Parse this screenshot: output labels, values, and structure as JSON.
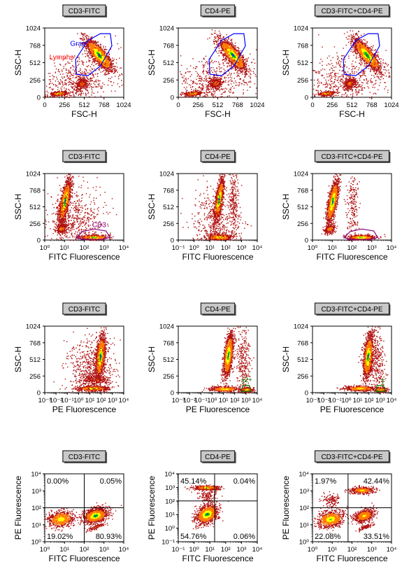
{
  "colors": {
    "density_low": "#b01010",
    "density_mid": "#ff7a00",
    "density_high": "#ffff00",
    "density_core": "#00c000",
    "density_peak": "#0030ff",
    "gate_gran": "#0000ff",
    "gate_lymphs": "#ff0000",
    "gate_cd3": "#800080",
    "gate_t": "#008000",
    "title_box": "#c8c8c8"
  },
  "chart_data": [
    {
      "type": "scatter",
      "title": "CD3-FITC",
      "xlabel": "FSC-H",
      "ylabel": "SSC-H",
      "x_scale": "linear",
      "y_scale": "linear",
      "xlim": [
        0,
        1024
      ],
      "ylim": [
        0,
        1024
      ],
      "x_ticks": [
        "0",
        "256",
        "512",
        "768",
        "1024"
      ],
      "y_ticks": [
        "0",
        "256",
        "512",
        "768",
        "1024"
      ],
      "populations": [
        {
          "x": 700,
          "y": 630,
          "sx": 90,
          "sy": 120,
          "r": -0.8,
          "n": 1500,
          "peak": 1.0
        },
        {
          "x": 180,
          "y": 60,
          "sx": 50,
          "sy": 15,
          "r": 0.3,
          "n": 400,
          "peak": 0.9
        },
        {
          "x": 480,
          "y": 210,
          "sx": 40,
          "sy": 40,
          "r": 0.2,
          "n": 300,
          "peak": 0.6
        },
        {
          "x": 400,
          "y": 200,
          "sx": 280,
          "sy": 220,
          "r": 0.3,
          "n": 700,
          "peak": 0.15
        }
      ],
      "gates": [
        {
          "name": "Gran",
          "color_key": "gate_gran",
          "points": [
            [
              400,
              560
            ],
            [
              560,
              840
            ],
            [
              720,
              940
            ],
            [
              850,
              940
            ],
            [
              870,
              760
            ],
            [
              720,
              460
            ],
            [
              560,
              320
            ],
            [
              410,
              340
            ]
          ]
        }
      ],
      "labels": [
        {
          "text": "Gran",
          "x": 330,
          "y": 760,
          "color_key": "gate_gran"
        },
        {
          "text": "Lymphs",
          "x": 60,
          "y": 560,
          "color_key": "gate_lymphs"
        }
      ]
    },
    {
      "type": "scatter",
      "title": "CD4-PE",
      "xlabel": "FSC-H",
      "ylabel": "SSC-H",
      "x_scale": "linear",
      "y_scale": "linear",
      "xlim": [
        0,
        1024
      ],
      "ylim": [
        0,
        1024
      ],
      "x_ticks": [
        "0",
        "256",
        "512",
        "768",
        "1024"
      ],
      "y_ticks": [
        "0",
        "256",
        "512",
        "768",
        "1024"
      ],
      "populations": [
        {
          "x": 700,
          "y": 630,
          "sx": 90,
          "sy": 120,
          "r": -0.8,
          "n": 1500,
          "peak": 1.0
        },
        {
          "x": 180,
          "y": 60,
          "sx": 50,
          "sy": 15,
          "r": 0.3,
          "n": 400,
          "peak": 0.9
        },
        {
          "x": 480,
          "y": 210,
          "sx": 40,
          "sy": 40,
          "r": 0.2,
          "n": 300,
          "peak": 0.6
        },
        {
          "x": 400,
          "y": 200,
          "sx": 280,
          "sy": 220,
          "r": 0.3,
          "n": 700,
          "peak": 0.15
        }
      ],
      "gates": [
        {
          "name": "Gran",
          "color_key": "gate_gran",
          "points": [
            [
              400,
              560
            ],
            [
              560,
              840
            ],
            [
              720,
              940
            ],
            [
              850,
              940
            ],
            [
              870,
              760
            ],
            [
              720,
              460
            ],
            [
              560,
              320
            ],
            [
              410,
              340
            ]
          ]
        }
      ],
      "labels": []
    },
    {
      "type": "scatter",
      "title": "CD3-FITC+CD4-PE",
      "xlabel": "FSC-H",
      "ylabel": "SSC-H",
      "x_scale": "linear",
      "y_scale": "linear",
      "xlim": [
        0,
        1024
      ],
      "ylim": [
        0,
        1024
      ],
      "x_ticks": [
        "0",
        "256",
        "512",
        "768",
        "1024"
      ],
      "y_ticks": [
        "0",
        "256",
        "512",
        "768",
        "1024"
      ],
      "populations": [
        {
          "x": 700,
          "y": 630,
          "sx": 90,
          "sy": 120,
          "r": -0.8,
          "n": 1500,
          "peak": 1.0
        },
        {
          "x": 180,
          "y": 60,
          "sx": 50,
          "sy": 15,
          "r": 0.3,
          "n": 400,
          "peak": 0.9
        },
        {
          "x": 480,
          "y": 210,
          "sx": 40,
          "sy": 40,
          "r": 0.2,
          "n": 300,
          "peak": 0.6
        },
        {
          "x": 400,
          "y": 200,
          "sx": 280,
          "sy": 220,
          "r": 0.3,
          "n": 700,
          "peak": 0.15
        }
      ],
      "gates": [
        {
          "name": "Gran",
          "color_key": "gate_gran",
          "points": [
            [
              400,
              560
            ],
            [
              560,
              840
            ],
            [
              720,
              940
            ],
            [
              850,
              940
            ],
            [
              870,
              760
            ],
            [
              720,
              460
            ],
            [
              560,
              320
            ],
            [
              410,
              340
            ]
          ]
        }
      ],
      "labels": []
    },
    {
      "type": "scatter",
      "title": "CD3-FITC",
      "xlabel": "FITC Fluorescence",
      "ylabel": "SSC-H",
      "x_scale": "log",
      "y_scale": "linear",
      "xlim": [
        0,
        4
      ],
      "ylim": [
        0,
        1024
      ],
      "y_ticks": [
        "0",
        "256",
        "512",
        "768",
        "1024"
      ],
      "populations": [
        {
          "x": 1.0,
          "y": 600,
          "sx": 0.15,
          "sy": 170,
          "r": 0.7,
          "n": 1400,
          "peak": 1.0
        },
        {
          "x": 2.45,
          "y": 45,
          "sx": 0.35,
          "sy": 20,
          "r": 0.0,
          "n": 500,
          "peak": 0.95
        },
        {
          "x": 0.85,
          "y": 180,
          "sx": 0.15,
          "sy": 40,
          "r": 0.3,
          "n": 250,
          "peak": 0.6
        },
        {
          "x": 1.5,
          "y": 300,
          "sx": 0.7,
          "sy": 250,
          "r": 0.0,
          "n": 600,
          "peak": 0.15
        }
      ],
      "gates": [
        {
          "name": "CD3",
          "color_key": "gate_cd3",
          "points": [
            [
              1.6,
              40
            ],
            [
              1.9,
              130
            ],
            [
              2.5,
              170
            ],
            [
              3.1,
              140
            ],
            [
              3.3,
              40
            ],
            [
              2.9,
              10
            ],
            [
              1.9,
              10
            ]
          ]
        }
      ],
      "labels": [
        {
          "text": "CD3",
          "x": 2.4,
          "y": 200,
          "color_key": "gate_cd3"
        }
      ]
    },
    {
      "type": "scatter",
      "title": "CD4-PE",
      "xlabel": "FITC Fluorescence",
      "ylabel": "SSC-H",
      "x_scale": "log",
      "y_scale": "linear",
      "xlim": [
        -1,
        4
      ],
      "ylim": [
        0,
        1024
      ],
      "y_ticks": [
        "0",
        "256",
        "512",
        "768",
        "1024"
      ],
      "populations": [
        {
          "x": 1.55,
          "y": 620,
          "sx": 0.15,
          "sy": 170,
          "r": 0.7,
          "n": 1400,
          "peak": 1.0
        },
        {
          "x": 1.6,
          "y": 50,
          "sx": 0.4,
          "sy": 25,
          "r": 0.0,
          "n": 500,
          "peak": 0.9
        },
        {
          "x": 2.5,
          "y": 600,
          "sx": 0.15,
          "sy": 250,
          "r": 0.0,
          "n": 200,
          "peak": 0.15
        },
        {
          "x": 1.5,
          "y": 300,
          "sx": 0.8,
          "sy": 250,
          "r": 0.0,
          "n": 500,
          "peak": 0.12
        }
      ],
      "gates": [],
      "labels": []
    },
    {
      "type": "scatter",
      "title": "CD3-FITC+CD4-PE",
      "xlabel": "FITC Fluorescence",
      "ylabel": "SSC-H",
      "x_scale": "log",
      "y_scale": "linear",
      "xlim": [
        0,
        4
      ],
      "ylim": [
        0,
        1024
      ],
      "y_ticks": [
        "0",
        "256",
        "512",
        "768",
        "1024"
      ],
      "populations": [
        {
          "x": 1.0,
          "y": 600,
          "sx": 0.15,
          "sy": 170,
          "r": 0.7,
          "n": 1400,
          "peak": 1.0
        },
        {
          "x": 2.45,
          "y": 45,
          "sx": 0.35,
          "sy": 20,
          "r": 0.0,
          "n": 500,
          "peak": 0.95
        },
        {
          "x": 0.85,
          "y": 180,
          "sx": 0.15,
          "sy": 40,
          "r": 0.3,
          "n": 250,
          "peak": 0.6
        },
        {
          "x": 2.0,
          "y": 550,
          "sx": 0.15,
          "sy": 250,
          "r": 0.0,
          "n": 200,
          "peak": 0.15
        }
      ],
      "gates": [
        {
          "name": "CD3",
          "color_key": "gate_cd3",
          "points": [
            [
              1.6,
              40
            ],
            [
              1.9,
              130
            ],
            [
              2.5,
              170
            ],
            [
              3.1,
              140
            ],
            [
              3.3,
              40
            ],
            [
              2.9,
              10
            ],
            [
              1.9,
              10
            ]
          ]
        }
      ],
      "labels": []
    },
    {
      "type": "scatter",
      "title": "CD3-FITC",
      "xlabel": "PE Fluorescence",
      "ylabel": "SSC-H",
      "x_scale": "log",
      "y_scale": "linear",
      "xlim": [
        -3,
        4
      ],
      "ylim": [
        0,
        1024
      ],
      "y_ticks": [
        "0",
        "256",
        "512",
        "768",
        "1024"
      ],
      "populations": [
        {
          "x": 1.9,
          "y": 560,
          "sx": 0.22,
          "sy": 170,
          "r": 0.4,
          "n": 1400,
          "peak": 1.0
        },
        {
          "x": 1.2,
          "y": 70,
          "sx": 0.7,
          "sy": 20,
          "r": 0.0,
          "n": 500,
          "peak": 0.9
        },
        {
          "x": 1.5,
          "y": 200,
          "sx": 0.6,
          "sy": 40,
          "r": 0.0,
          "n": 250,
          "peak": 0.5
        },
        {
          "x": 1.0,
          "y": 350,
          "sx": 1.0,
          "sy": 250,
          "r": 0.0,
          "n": 600,
          "peak": 0.12
        }
      ],
      "gates": [],
      "labels": []
    },
    {
      "type": "scatter",
      "title": "CD4-PE",
      "xlabel": "PE Fluorescence",
      "ylabel": "SSC-H",
      "x_scale": "log",
      "y_scale": "linear",
      "xlim": [
        -3,
        4
      ],
      "ylim": [
        0,
        1024
      ],
      "y_ticks": [
        "0",
        "256",
        "512",
        "768",
        "1024"
      ],
      "populations": [
        {
          "x": 1.4,
          "y": 580,
          "sx": 0.22,
          "sy": 170,
          "r": 0.5,
          "n": 1300,
          "peak": 1.0
        },
        {
          "x": 1.1,
          "y": 60,
          "sx": 0.7,
          "sy": 20,
          "r": 0.0,
          "n": 450,
          "peak": 0.85
        },
        {
          "x": 3.0,
          "y": 50,
          "sx": 0.3,
          "sy": 20,
          "r": 0.0,
          "n": 250,
          "peak": 0.8
        },
        {
          "x": 2.7,
          "y": 500,
          "sx": 0.3,
          "sy": 280,
          "r": 0.0,
          "n": 300,
          "peak": 0.15
        }
      ],
      "gates": [
        {
          "name": "T",
          "color_key": "gate_t",
          "points": [
            [
              2.6,
              20
            ],
            [
              2.7,
              110
            ],
            [
              3.3,
              110
            ],
            [
              3.4,
              20
            ]
          ]
        }
      ],
      "labels": [
        {
          "text": "T",
          "x": 2.55,
          "y": 130,
          "color_key": "gate_t"
        },
        {
          "text": "2+",
          "x": 2.85,
          "y": 160,
          "color_key": "gate_t"
        }
      ]
    },
    {
      "type": "scatter",
      "title": "CD3-FITC+CD4-PE",
      "xlabel": "PE Fluorescence",
      "ylabel": "SSC-H",
      "x_scale": "log",
      "y_scale": "linear",
      "xlim": [
        -3,
        4
      ],
      "ylim": [
        0,
        1024
      ],
      "y_ticks": [
        "0",
        "256",
        "512",
        "768",
        "1024"
      ],
      "populations": [
        {
          "x": 1.9,
          "y": 560,
          "sx": 0.22,
          "sy": 170,
          "r": 0.4,
          "n": 1400,
          "peak": 1.0
        },
        {
          "x": 1.2,
          "y": 70,
          "sx": 0.7,
          "sy": 20,
          "r": 0.0,
          "n": 450,
          "peak": 0.85
        },
        {
          "x": 3.0,
          "y": 50,
          "sx": 0.3,
          "sy": 20,
          "r": 0.0,
          "n": 250,
          "peak": 0.8
        },
        {
          "x": 2.7,
          "y": 500,
          "sx": 0.3,
          "sy": 280,
          "r": 0.0,
          "n": 300,
          "peak": 0.15
        }
      ],
      "gates": [
        {
          "name": "T",
          "color_key": "gate_t",
          "points": [
            [
              2.6,
              20
            ],
            [
              2.7,
              110
            ],
            [
              3.3,
              110
            ],
            [
              3.4,
              20
            ]
          ]
        }
      ],
      "labels": [
        {
          "text": "T",
          "x": 3.05,
          "y": 130,
          "color_key": "gate_t"
        }
      ]
    },
    {
      "type": "scatter",
      "title": "CD3-FITC",
      "xlabel": "FITC Fluorescence",
      "ylabel": "PE Fluorescence",
      "x_scale": "log",
      "y_scale": "log",
      "xlim": [
        0,
        4
      ],
      "ylim": [
        0,
        4
      ],
      "quadrant": [
        2,
        2
      ],
      "quadrant_values": {
        "ul": "0.00%",
        "ur": "0.05%",
        "ll": "19.02%",
        "lr": "80.93%"
      },
      "populations": [
        {
          "x": 2.55,
          "y": 1.55,
          "sx": 0.3,
          "sy": 0.22,
          "r": 0.3,
          "n": 1200,
          "peak": 1.0
        },
        {
          "x": 0.8,
          "y": 1.35,
          "sx": 0.35,
          "sy": 0.25,
          "r": 0.2,
          "n": 700,
          "peak": 0.85
        },
        {
          "x": 2.6,
          "y": 0.9,
          "sx": 0.2,
          "sy": 0.1,
          "r": 0.8,
          "n": 120,
          "peak": 0.5
        }
      ],
      "gates": [],
      "labels": []
    },
    {
      "type": "scatter",
      "title": "CD4-PE",
      "xlabel": "FITC Fluorescence",
      "ylabel": "PE Fluorescence",
      "x_scale": "log",
      "y_scale": "log",
      "xlim": [
        -1,
        4
      ],
      "ylim": [
        -1,
        4
      ],
      "quadrant": [
        1.3,
        2.0
      ],
      "quadrant_values": {
        "ul": "45.14%",
        "ur": "0.04%",
        "ll": "54.76%",
        "lr": "0.06%"
      },
      "populations": [
        {
          "x": 0.8,
          "y": 1.05,
          "sx": 0.35,
          "sy": 0.35,
          "r": 0.3,
          "n": 1100,
          "peak": 1.0
        },
        {
          "x": 0.8,
          "y": 3.0,
          "sx": 0.4,
          "sy": 0.08,
          "r": 0.0,
          "n": 500,
          "peak": 0.9
        },
        {
          "x": 0.9,
          "y": 2.4,
          "sx": 0.3,
          "sy": 0.3,
          "r": 0.0,
          "n": 150,
          "peak": 0.2
        }
      ],
      "gates": [],
      "labels": []
    },
    {
      "type": "scatter",
      "title": "CD3-FITC+CD4-PE",
      "xlabel": "FITC Fluorescence",
      "ylabel": "PE Fluorescence",
      "x_scale": "log",
      "y_scale": "log",
      "xlim": [
        0,
        4
      ],
      "ylim": [
        0,
        4
      ],
      "quadrant": [
        1.8,
        2.0
      ],
      "quadrant_values": {
        "ul": "1.97%",
        "ur": "42.44%",
        "ll": "22.08%",
        "lr": "33.51%"
      },
      "populations": [
        {
          "x": 0.9,
          "y": 1.35,
          "sx": 0.35,
          "sy": 0.25,
          "r": 0.2,
          "n": 800,
          "peak": 0.9
        },
        {
          "x": 2.6,
          "y": 1.55,
          "sx": 0.25,
          "sy": 0.2,
          "r": 0.3,
          "n": 600,
          "peak": 0.8
        },
        {
          "x": 2.5,
          "y": 3.05,
          "sx": 0.3,
          "sy": 0.1,
          "r": 0.0,
          "n": 450,
          "peak": 0.8
        },
        {
          "x": 0.9,
          "y": 2.5,
          "sx": 0.2,
          "sy": 0.2,
          "r": 0.0,
          "n": 120,
          "peak": 0.4
        },
        {
          "x": 2.7,
          "y": 0.9,
          "sx": 0.2,
          "sy": 0.1,
          "r": 0.8,
          "n": 100,
          "peak": 0.4
        }
      ],
      "gates": [],
      "labels": []
    }
  ]
}
